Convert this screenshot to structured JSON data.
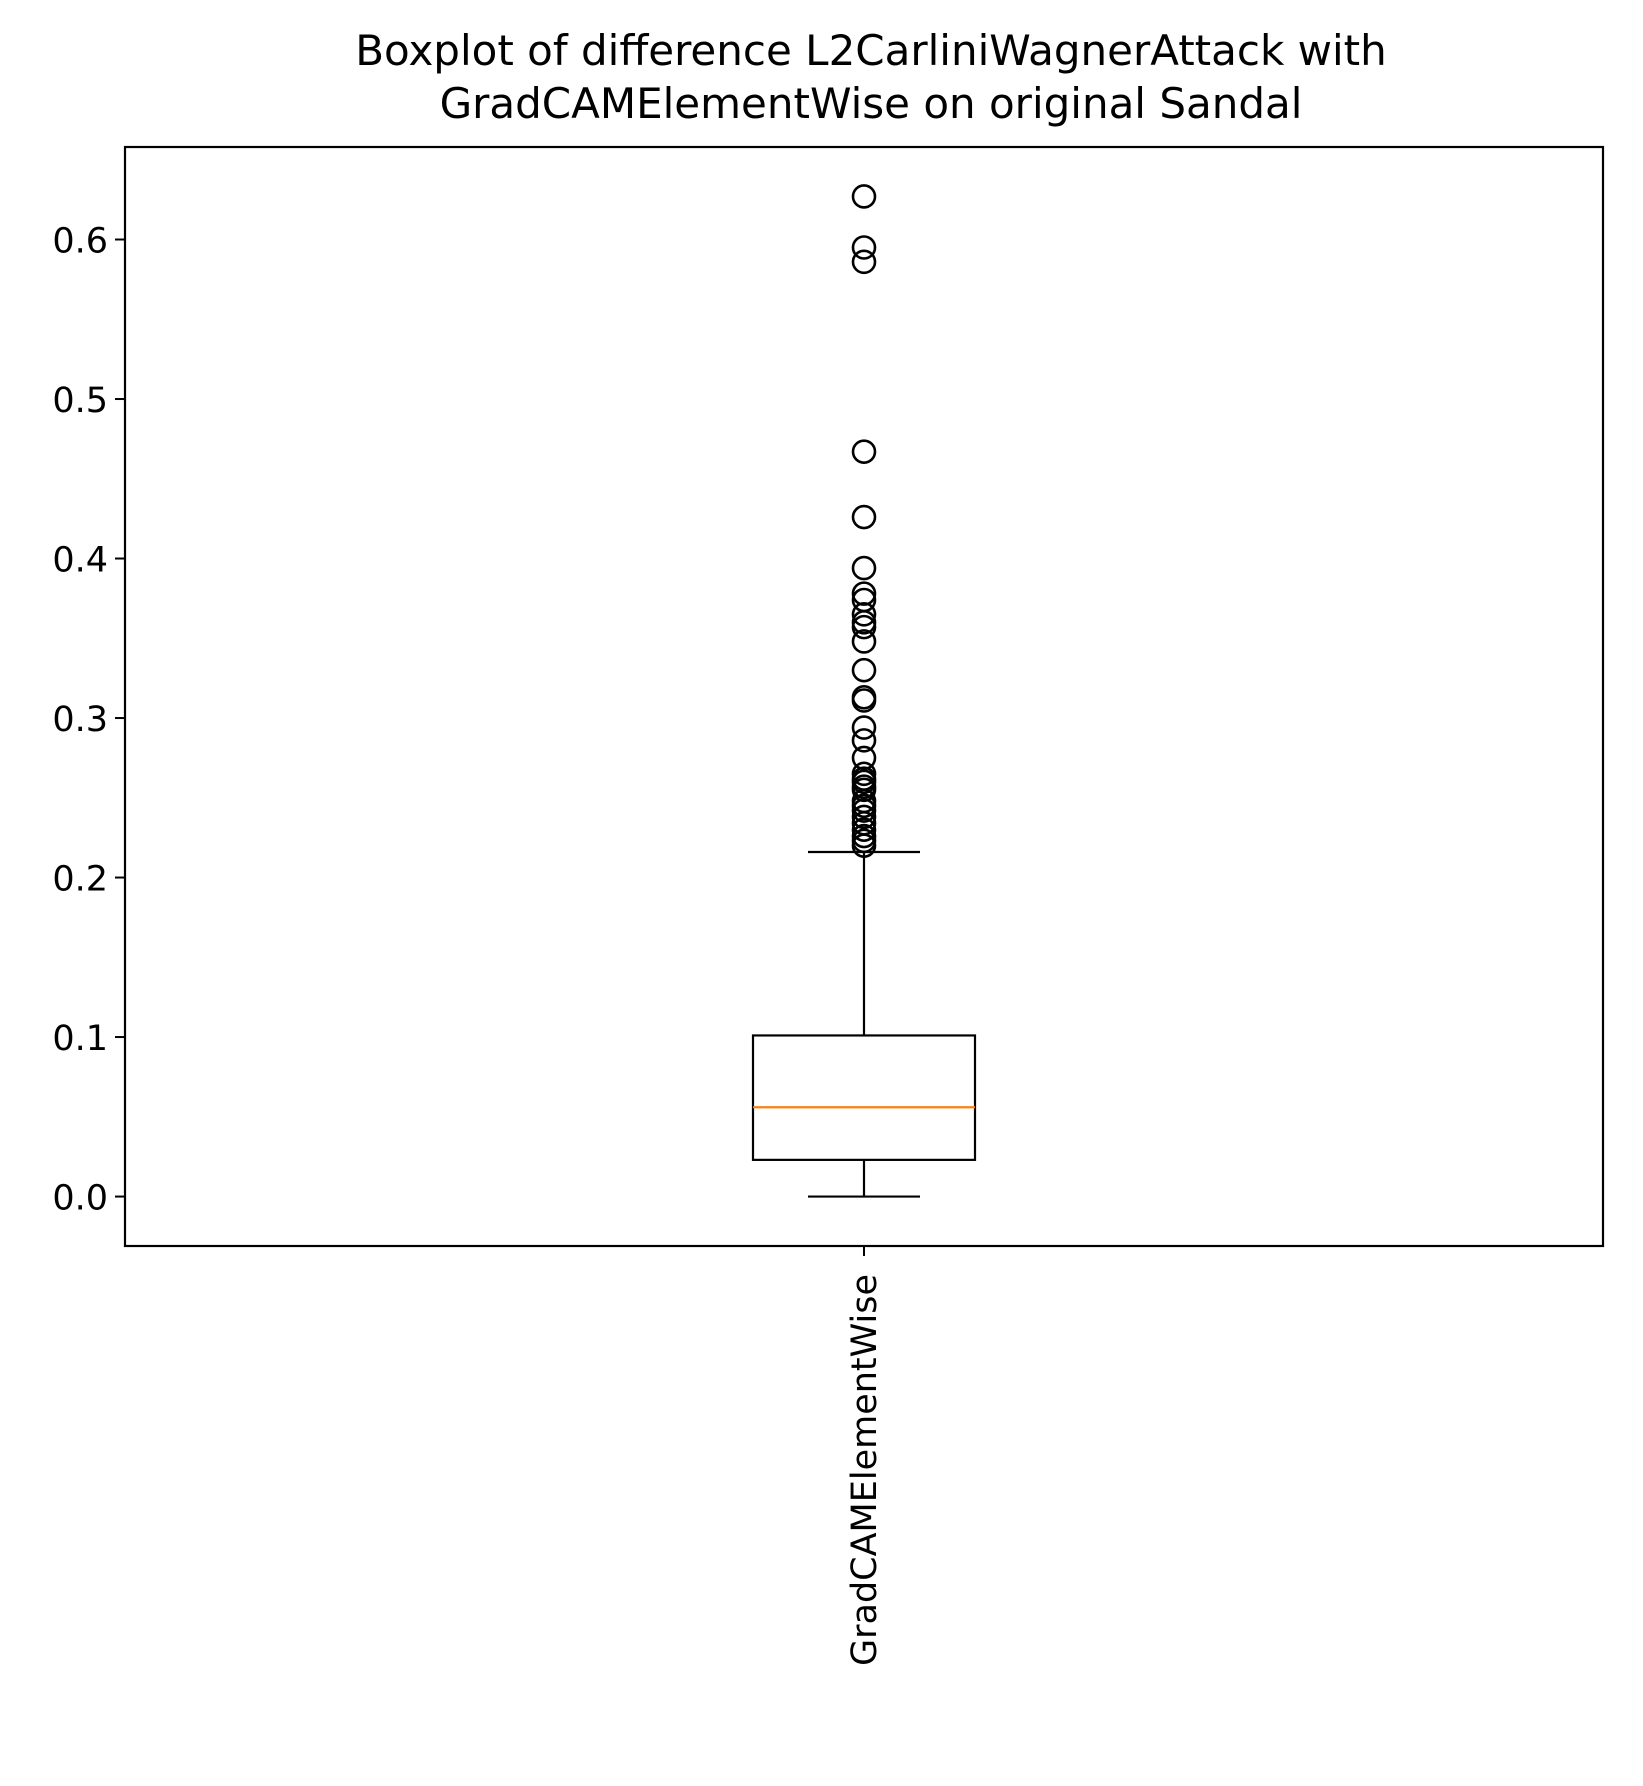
{
  "chart_data": {
    "type": "boxplot",
    "title_lines": [
      "Boxplot of difference L2CarliniWagnerAttack with",
      "GradCAMElementWise on original Sandal"
    ],
    "xlabel": "",
    "ylabel": "",
    "categories": [
      "GradCAMElementWise"
    ],
    "ylim": [
      -0.031,
      0.658
    ],
    "yticks": [
      {
        "value": 0.0,
        "label": "0.0"
      },
      {
        "value": 0.1,
        "label": "0.1"
      },
      {
        "value": 0.2,
        "label": "0.2"
      },
      {
        "value": 0.3,
        "label": "0.3"
      },
      {
        "value": 0.4,
        "label": "0.4"
      },
      {
        "value": 0.5,
        "label": "0.5"
      },
      {
        "value": 0.6,
        "label": "0.6"
      }
    ],
    "boxes": [
      {
        "category": "GradCAMElementWise",
        "whisker_low": 0.0,
        "q1": 0.023,
        "median": 0.056,
        "q3": 0.101,
        "whisker_high": 0.216,
        "outliers": [
          0.627,
          0.595,
          0.586,
          0.467,
          0.426,
          0.394,
          0.378,
          0.374,
          0.365,
          0.36,
          0.357,
          0.348,
          0.33,
          0.313,
          0.311,
          0.294,
          0.286,
          0.275,
          0.265,
          0.262,
          0.26,
          0.257,
          0.255,
          0.248,
          0.245,
          0.242,
          0.238,
          0.234,
          0.23,
          0.226,
          0.223,
          0.22
        ]
      }
    ],
    "colors": {
      "box": "#000000",
      "median": "#ff7f0e",
      "outlier_edge": "#000000",
      "background": "#ffffff"
    },
    "grid": false,
    "legend": "none"
  }
}
